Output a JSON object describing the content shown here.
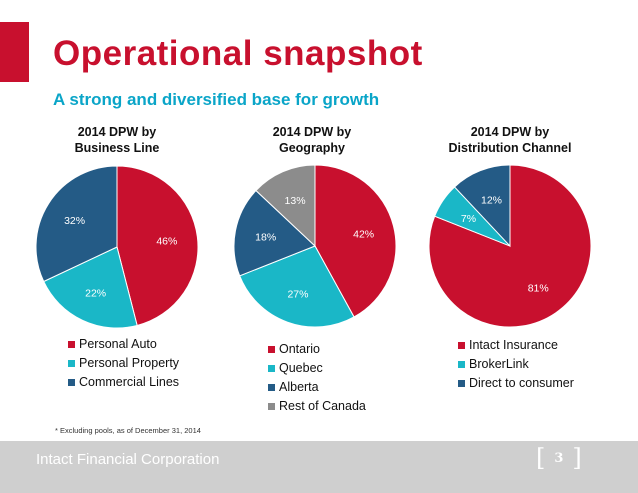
{
  "header": {
    "title": "Operational snapshot",
    "subtitle": "A strong and diversified base for growth"
  },
  "colors": {
    "red": "#c8102e",
    "teal": "#1ab7c7",
    "navy": "#245b86",
    "gray": "#8c8c8c"
  },
  "chart_data": [
    {
      "type": "pie",
      "title_line1": "2014 DPW by",
      "title_line2": "Business Line",
      "slices": [
        {
          "label": "Personal Auto",
          "value": 46,
          "display": "46%",
          "color": "#c8102e"
        },
        {
          "label": "Personal Property",
          "value": 22,
          "display": "22%",
          "color": "#1ab7c7"
        },
        {
          "label": "Commercial Lines",
          "value": 32,
          "display": "32%",
          "color": "#245b86"
        }
      ]
    },
    {
      "type": "pie",
      "title_line1": "2014 DPW by",
      "title_line2": "Geography",
      "slices": [
        {
          "label": "Ontario",
          "value": 42,
          "display": "42%",
          "color": "#c8102e"
        },
        {
          "label": "Quebec",
          "value": 27,
          "display": "27%",
          "color": "#1ab7c7"
        },
        {
          "label": "Alberta",
          "value": 18,
          "display": "18%",
          "color": "#245b86"
        },
        {
          "label": "Rest of Canada",
          "value": 13,
          "display": "13%",
          "color": "#8c8c8c"
        }
      ]
    },
    {
      "type": "pie",
      "title_line1": "2014 DPW by",
      "title_line2": "Distribution Channel",
      "slices": [
        {
          "label": "Intact Insurance",
          "value": 81,
          "display": "81%",
          "color": "#c8102e"
        },
        {
          "label": "BrokerLink",
          "value": 7,
          "display": "7%",
          "color": "#1ab7c7"
        },
        {
          "label": "Direct to consumer",
          "value": 12,
          "display": "12%",
          "color": "#245b86"
        }
      ]
    }
  ],
  "footnote": "* Excluding pools, as of December 31, 2014",
  "footer": {
    "company": "Intact Financial Corporation",
    "bracket_open": "[",
    "page_number": "3",
    "bracket_close": "]"
  }
}
